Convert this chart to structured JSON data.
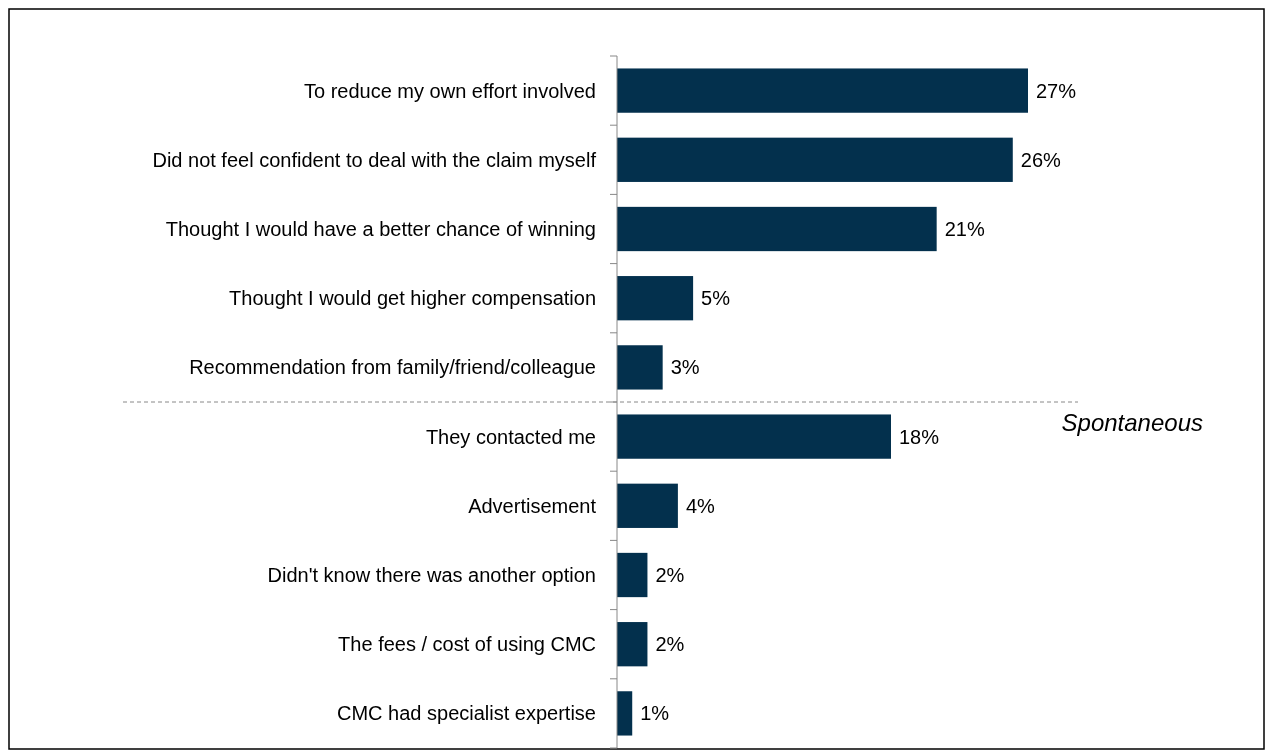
{
  "chart_data": {
    "type": "bar",
    "orientation": "horizontal",
    "categories": [
      "To reduce my own effort involved",
      "Did not feel confident to deal with the claim myself",
      "Thought I would have a better chance of winning",
      "Thought I would get higher compensation",
      "Recommendation from family/friend/colleague",
      "They contacted me",
      "Advertisement",
      "Didn't know there was another option",
      "The fees / cost of using CMC",
      "CMC had specialist expertise"
    ],
    "values": [
      27,
      26,
      21,
      5,
      3,
      18,
      4,
      2,
      2,
      1
    ],
    "value_labels": [
      "27%",
      "26%",
      "21%",
      "5%",
      "3%",
      "18%",
      "4%",
      "2%",
      "2%",
      "1%"
    ],
    "color": "#03304d",
    "annotations": [
      "Spontaneous"
    ]
  }
}
